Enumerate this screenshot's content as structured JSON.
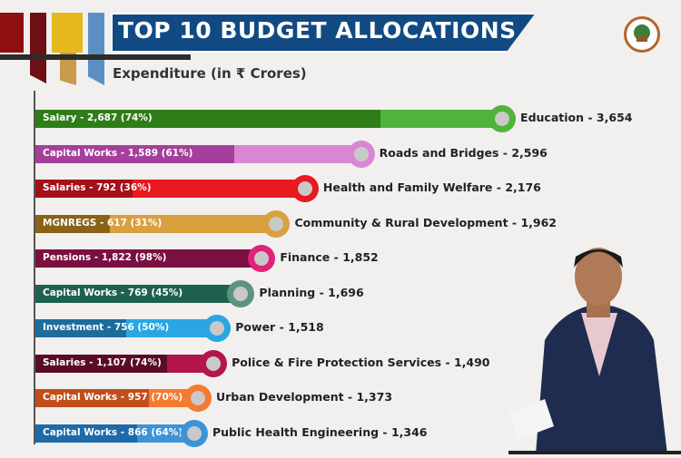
{
  "chart_data": {
    "type": "bar",
    "orientation": "horizontal",
    "title": "TOP 10 BUDGET ALLOCATIONS",
    "subtitle": "Expenditure (in ₹ Crores)",
    "categories": [
      "Education",
      "Roads and Bridges",
      "Health and Family Welfare",
      "Community & Rural Development",
      "Finance",
      "Planning",
      "Power",
      "Police & Fire Protection Services",
      "Urban Development",
      "Public Health Engineering"
    ],
    "values": [
      3654,
      2596,
      2176,
      1962,
      1852,
      1696,
      1518,
      1490,
      1373,
      1346
    ],
    "value_labels": [
      "3,654",
      "2,596",
      "2,176",
      "1,962",
      "1,852",
      "1,696",
      "1,518",
      "1,490",
      "1,373",
      "1,346"
    ],
    "sub_items": [
      {
        "label": "Salary",
        "value": 2687,
        "value_label": "2,687",
        "pct": 74
      },
      {
        "label": "Capital Works",
        "value": 1589,
        "value_label": "1,589",
        "pct": 61
      },
      {
        "label": "Salaries",
        "value": 792,
        "value_label": "792",
        "pct": 36
      },
      {
        "label": "MGNREGS",
        "value": 617,
        "value_label": "617",
        "pct": 31
      },
      {
        "label": "Pensions",
        "value": 1822,
        "value_label": "1,822",
        "pct": 98
      },
      {
        "label": "Capital Works",
        "value": 769,
        "value_label": "769",
        "pct": 45
      },
      {
        "label": "Investment",
        "value": 756,
        "value_label": "756",
        "pct": 50
      },
      {
        "label": "Salaries",
        "value": 1107,
        "value_label": "1,107",
        "pct": 74
      },
      {
        "label": "Capital Works",
        "value": 957,
        "value_label": "957",
        "pct": 70
      },
      {
        "label": "Capital Works",
        "value": 866,
        "value_label": "866",
        "pct": 64
      }
    ],
    "colors": [
      {
        "dark": "#2f7d18",
        "light": "#4fb33c"
      },
      {
        "dark": "#a4409c",
        "light": "#d987d2"
      },
      {
        "dark": "#a50f18",
        "light": "#e8191f"
      },
      {
        "dark": "#8a6218",
        "light": "#d9a040"
      },
      {
        "dark": "#7a1040",
        "light": "#e0237a"
      },
      {
        "dark": "#1f614f",
        "light": "#1f614f"
      },
      {
        "dark": "#1d6c9e",
        "light": "#2aa6e2"
      },
      {
        "dark": "#5a0c24",
        "light": "#b3164a"
      },
      {
        "dark": "#c04e1c",
        "light": "#f47b30"
      },
      {
        "dark": "#1e6aa8",
        "light": "#3d93d6"
      }
    ],
    "grid": false
  }
}
